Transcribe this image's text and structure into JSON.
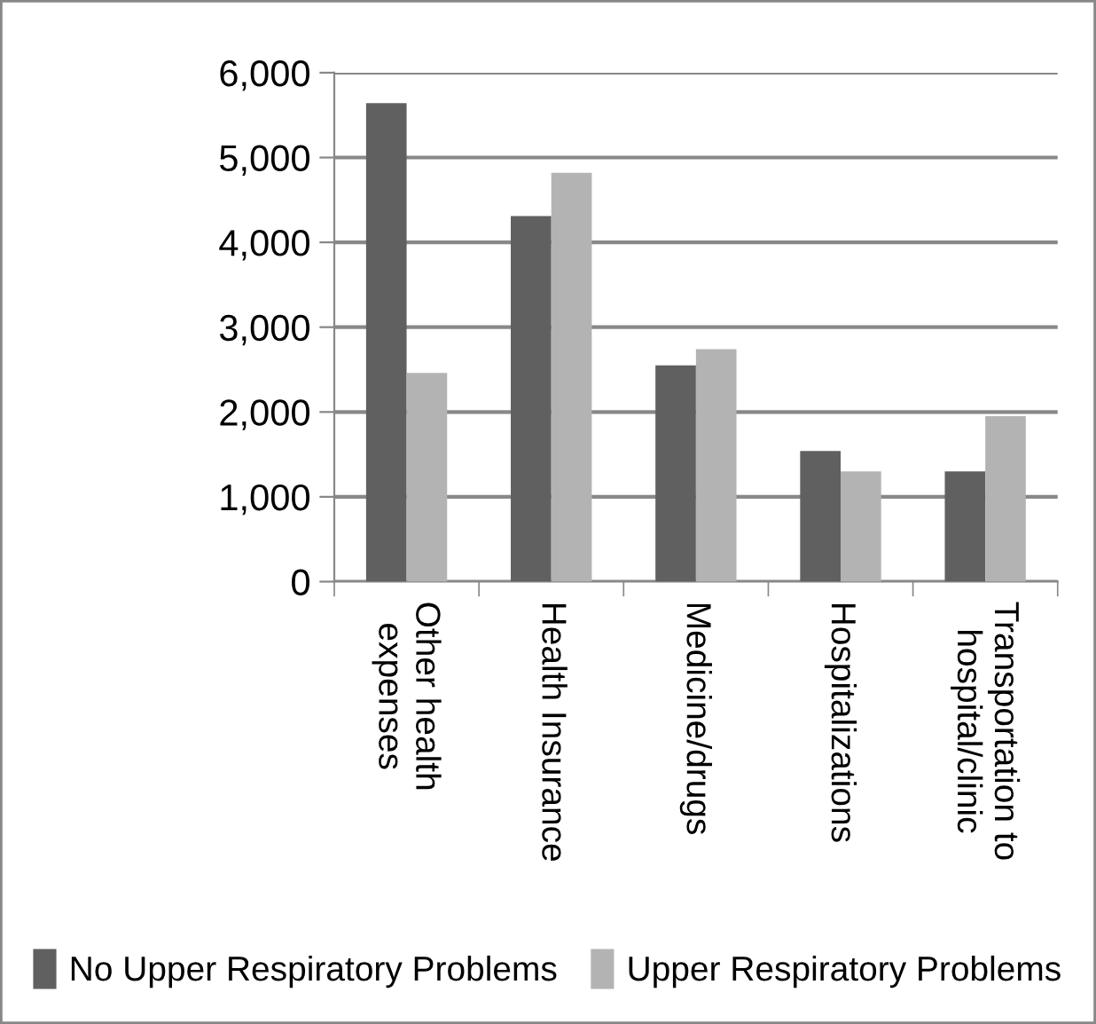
{
  "chart_data": {
    "type": "bar",
    "categories": [
      "Other health\nexpenses",
      "Health Insurance",
      "Medicine/drugs",
      "Hospitalizations",
      "Transportation to\nhospital/clinic"
    ],
    "series": [
      {
        "name": "No Upper Respiratory Problems",
        "color": "#606060",
        "values": [
          5640,
          4310,
          2550,
          1540,
          1300
        ]
      },
      {
        "name": "Upper Respiratory Problems",
        "color": "#b3b3b3",
        "values": [
          2460,
          4820,
          2740,
          1300,
          1950
        ]
      }
    ],
    "ylim": [
      0,
      6000
    ],
    "yticks": [
      {
        "value": 0,
        "label": "0"
      },
      {
        "value": 1000,
        "label": "1,000"
      },
      {
        "value": 2000,
        "label": "2,000"
      },
      {
        "value": 3000,
        "label": "3,000"
      },
      {
        "value": 4000,
        "label": "4,000"
      },
      {
        "value": 5000,
        "label": "5,000"
      },
      {
        "value": 6000,
        "label": "6,000"
      }
    ],
    "grid": "y",
    "legend": "bottom"
  }
}
